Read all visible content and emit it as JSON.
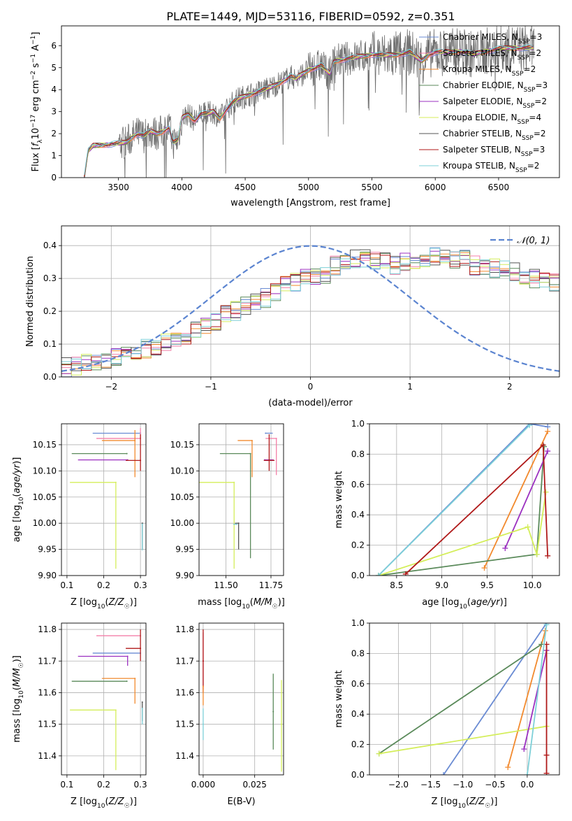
{
  "figure_title": "PLATE=1449, MJD=53116, FIBERID=0592, z=0.351",
  "colors": {
    "Chabrier MILES": "#6a8bd3",
    "Salpeter MILES": "#f47fa8",
    "Kroupa MILES": "#f28a2e",
    "Chabrier ELODIE": "#5a8a5a",
    "Salpeter ELODIE": "#9b30c0",
    "Kroupa ELODIE": "#d4ee5a",
    "Chabrier STELIB": "#555555",
    "Salpeter STELIB": "#b01a1a",
    "Kroupa STELIB": "#7ed0d8",
    "gauss": "#5b84d0",
    "data": "#6e6e6e"
  },
  "chart_data": [
    {
      "type": "line",
      "title": "PLATE=1449, MJD=53116, FIBERID=0592, z=0.351",
      "xlabel": "wavelength [Angstrom, rest frame]",
      "ylabel": "Flux [f_λ 10^-17 erg cm^-2 s^-1 A^-1]",
      "xlim": [
        3050,
        6980
      ],
      "ylim": [
        0,
        6.9
      ],
      "xticks": [
        3500,
        4000,
        4500,
        5000,
        5500,
        6000,
        6500
      ],
      "yticks": [
        0,
        1,
        2,
        3,
        4,
        5,
        6
      ],
      "legend_position": "top-right",
      "legend": [
        {
          "name": "Chabrier MILES",
          "n": "3"
        },
        {
          "name": "Salpeter MILES",
          "n": "2"
        },
        {
          "name": "Kroupa MILES",
          "n": "2"
        },
        {
          "name": "Chabrier ELODIE",
          "n": "3"
        },
        {
          "name": "Salpeter ELODIE",
          "n": "2"
        },
        {
          "name": "Kroupa ELODIE",
          "n": "4"
        },
        {
          "name": "Chabrier STELIB",
          "n": "2"
        },
        {
          "name": "Salpeter STELIB",
          "n": "3"
        },
        {
          "name": "Kroupa STELIB",
          "n": "2"
        }
      ],
      "model_continuum": {
        "x": [
          3230,
          3260,
          3300,
          3400,
          3500,
          3560,
          3600,
          3650,
          3700,
          3750,
          3800,
          3850,
          3900,
          3930,
          3970,
          4000,
          4050,
          4100,
          4150,
          4200,
          4250,
          4300,
          4350,
          4400,
          4450,
          4500,
          4550,
          4600,
          4700,
          4800,
          4860,
          4900,
          5000,
          5100,
          5170,
          5200,
          5300,
          5400,
          5500,
          5600,
          5700,
          5800,
          5890,
          5950,
          6000,
          6100,
          6200,
          6300,
          6400,
          6500,
          6600,
          6700,
          6780
        ],
        "y": [
          0.0,
          1.2,
          1.45,
          1.5,
          1.55,
          1.6,
          1.8,
          2.0,
          1.9,
          2.1,
          2.0,
          2.1,
          2.3,
          1.6,
          1.7,
          2.7,
          2.9,
          2.6,
          2.9,
          2.9,
          3.0,
          2.7,
          3.1,
          3.4,
          3.6,
          3.7,
          3.8,
          3.9,
          4.1,
          4.4,
          4.6,
          4.5,
          4.9,
          5.1,
          4.7,
          5.3,
          5.4,
          5.5,
          5.6,
          5.55,
          5.6,
          5.7,
          5.3,
          5.6,
          5.7,
          5.7,
          5.75,
          5.6,
          5.75,
          5.85,
          5.9,
          5.9,
          5.9
        ]
      }
    },
    {
      "type": "line",
      "xlabel": "(data-model)/error",
      "ylabel": "Normed distribution",
      "xlim": [
        -2.5,
        2.5
      ],
      "ylim": [
        0,
        0.46
      ],
      "xticks": [
        -2,
        -1,
        0,
        1,
        2
      ],
      "yticks": [
        0.0,
        0.1,
        0.2,
        0.3,
        0.4
      ],
      "gauss_label": "𝒩(0, 1)",
      "bin_edges_start": -2.5,
      "bin_width": 0.1,
      "histogram_base": [
        0.03,
        0.035,
        0.04,
        0.045,
        0.055,
        0.065,
        0.07,
        0.08,
        0.085,
        0.095,
        0.11,
        0.12,
        0.13,
        0.14,
        0.155,
        0.17,
        0.19,
        0.2,
        0.215,
        0.23,
        0.24,
        0.26,
        0.28,
        0.29,
        0.3,
        0.3,
        0.31,
        0.34,
        0.35,
        0.36,
        0.36,
        0.35,
        0.35,
        0.34,
        0.35,
        0.35,
        0.36,
        0.37,
        0.37,
        0.36,
        0.36,
        0.34,
        0.34,
        0.33,
        0.33,
        0.32,
        0.31,
        0.3,
        0.3,
        0.29,
        0.29,
        0.28,
        0.27,
        0.26,
        0.25,
        0.23,
        0.22,
        0.21,
        0.2,
        0.19,
        0.18,
        0.17,
        0.16,
        0.15,
        0.15,
        0.14,
        0.13,
        0.12,
        0.11,
        0.1,
        0.09,
        0.08,
        0.075,
        0.07,
        0.06,
        0.055,
        0.05,
        0.05,
        0.045,
        0.045
      ]
    },
    {
      "type": "scatter",
      "xlabel": "Z [log10(Z/Z☉)]",
      "ylabel": "age [log10(age/yr)]",
      "xlim": [
        0.085,
        0.315
      ],
      "ylim": [
        9.9,
        10.19
      ],
      "xticks": [
        0.1,
        0.2,
        0.3
      ],
      "yticks": [
        9.9,
        9.95,
        10.0,
        10.05,
        10.1,
        10.15
      ],
      "points": [
        {
          "name": "Chabrier MILES",
          "x": 0.3,
          "xerr": [
            0.13,
            0.0
          ],
          "y": 10.172,
          "yerr": [
            0.0,
            0.0
          ]
        },
        {
          "name": "Salpeter MILES",
          "x": 0.3,
          "xerr": [
            0.12,
            0.0
          ],
          "y": 10.162,
          "yerr": [
            0.0,
            0.02
          ]
        },
        {
          "name": "Kroupa MILES",
          "x": 0.285,
          "xerr": [
            0.09,
            0.0
          ],
          "y": 10.158,
          "yerr": [
            0.07,
            0.02
          ]
        },
        {
          "name": "Chabrier ELODIE",
          "x": 0.263,
          "xerr": [
            0.15,
            0.0
          ],
          "y": 10.133,
          "yerr": [
            0.0,
            0.0
          ]
        },
        {
          "name": "Salpeter ELODIE",
          "x": 0.265,
          "xerr": [
            0.135,
            0.0
          ],
          "y": 10.121,
          "yerr": [
            0.0,
            0.0
          ]
        },
        {
          "name": "Kroupa ELODIE",
          "x": 0.233,
          "xerr": [
            0.125,
            0.0
          ],
          "y": 10.078,
          "yerr": [
            0.165,
            0.0
          ]
        },
        {
          "name": "Chabrier STELIB",
          "x": 0.305,
          "xerr": [
            0.0,
            0.0
          ],
          "y": 10.0,
          "yerr": [
            0.05,
            0.0
          ]
        },
        {
          "name": "Salpeter STELIB",
          "x": 0.3,
          "xerr": [
            0.04,
            0.0
          ],
          "y": 10.12,
          "yerr": [
            0.02,
            0.05
          ]
        },
        {
          "name": "Kroupa STELIB",
          "x": 0.305,
          "xerr": [
            0.0,
            0.0
          ],
          "y": 9.998,
          "yerr": [
            0.05,
            0.0
          ]
        }
      ]
    },
    {
      "type": "scatter",
      "xlabel": "mass [log10(M/M☉)]",
      "ylabel": "",
      "xlim": [
        11.35,
        11.82
      ],
      "ylim": [
        9.9,
        10.19
      ],
      "xticks": [
        11.5,
        11.75
      ],
      "yticks": [
        9.9,
        9.95,
        10.0,
        10.05,
        10.1,
        10.15
      ],
      "points": [
        {
          "name": "Chabrier MILES",
          "x": 11.72,
          "xerr": [
            0.0,
            0.04
          ],
          "y": 10.172,
          "yerr": [
            0.0,
            0.0
          ]
        },
        {
          "name": "Salpeter MILES",
          "x": 11.78,
          "xerr": [
            0.06,
            0.0
          ],
          "y": 10.162,
          "yerr": [
            0.07,
            0.0
          ]
        },
        {
          "name": "Kroupa MILES",
          "x": 11.645,
          "xerr": [
            0.08,
            0.0
          ],
          "y": 10.158,
          "yerr": [
            0.07,
            0.0
          ]
        },
        {
          "name": "Chabrier ELODIE",
          "x": 11.636,
          "xerr": [
            0.17,
            0.0
          ],
          "y": 10.133,
          "yerr": [
            0.2,
            0.0
          ]
        },
        {
          "name": "Salpeter ELODIE",
          "x": 11.715,
          "xerr": [
            0.0,
            0.05
          ],
          "y": 10.121,
          "yerr": [
            0.0,
            0.0
          ]
        },
        {
          "name": "Kroupa ELODIE",
          "x": 11.545,
          "xerr": [
            0.21,
            0.0
          ],
          "y": 10.078,
          "yerr": [
            0.165,
            0.0
          ]
        },
        {
          "name": "Chabrier STELIB",
          "x": 11.57,
          "xerr": [
            0.02,
            0.0
          ],
          "y": 10.0,
          "yerr": [
            0.05,
            0.0
          ]
        },
        {
          "name": "Salpeter STELIB",
          "x": 11.74,
          "xerr": [
            0.03,
            0.03
          ],
          "y": 10.12,
          "yerr": [
            0.02,
            0.05
          ]
        },
        {
          "name": "Kroupa STELIB",
          "x": 11.56,
          "xerr": [
            0.02,
            0.0
          ],
          "y": 9.998,
          "yerr": [
            0.0,
            0.0
          ]
        }
      ]
    },
    {
      "type": "line",
      "xlabel": "age [log10(age/yr)]",
      "ylabel": "mass weight",
      "xlim": [
        8.2,
        10.3
      ],
      "ylim": [
        0,
        1.0
      ],
      "xticks": [
        8.5,
        9.0,
        9.5,
        10.0
      ],
      "yticks": [
        0.0,
        0.2,
        0.4,
        0.6,
        0.8,
        1.0
      ],
      "series": [
        {
          "name": "Chabrier MILES",
          "x": [
            8.3,
            9.97,
            10.17
          ],
          "y": [
            0.0,
            1.0,
            0.98
          ]
        },
        {
          "name": "Kroupa MILES",
          "x": [
            9.47,
            10.17
          ],
          "y": [
            0.05,
            0.95
          ]
        },
        {
          "name": "Chabrier ELODIE",
          "x": [
            8.3,
            10.05,
            10.13
          ],
          "y": [
            0.0,
            0.14,
            0.85
          ]
        },
        {
          "name": "Salpeter ELODIE",
          "x": [
            9.7,
            10.17
          ],
          "y": [
            0.18,
            0.82
          ]
        },
        {
          "name": "Kroupa ELODIE",
          "x": [
            8.3,
            9.95,
            10.05,
            10.15
          ],
          "y": [
            0.0,
            0.32,
            0.14,
            0.55
          ]
        },
        {
          "name": "Salpeter STELIB",
          "x": [
            8.6,
            10.12,
            10.17
          ],
          "y": [
            0.01,
            0.86,
            0.13
          ]
        },
        {
          "name": "Kroupa STELIB",
          "x": [
            8.3,
            9.97
          ],
          "y": [
            0.0,
            0.99
          ]
        }
      ]
    },
    {
      "type": "scatter",
      "xlabel": "Z [log10(Z/Z☉)]",
      "ylabel": "mass [log10(M/M☉)]",
      "xlim": [
        0.085,
        0.315
      ],
      "ylim": [
        11.34,
        11.82
      ],
      "xticks": [
        0.1,
        0.2,
        0.3
      ],
      "yticks": [
        11.4,
        11.5,
        11.6,
        11.7,
        11.8
      ],
      "points": [
        {
          "name": "Chabrier MILES",
          "x": 0.3,
          "xerr": [
            0.13,
            0.0
          ],
          "y": 11.725,
          "yerr": [
            0.0,
            0.0
          ]
        },
        {
          "name": "Salpeter MILES",
          "x": 0.3,
          "xerr": [
            0.12,
            0.0
          ],
          "y": 11.78,
          "yerr": [
            0.0,
            0.0
          ]
        },
        {
          "name": "Kroupa MILES",
          "x": 0.285,
          "xerr": [
            0.09,
            0.0
          ],
          "y": 11.645,
          "yerr": [
            0.08,
            0.0
          ]
        },
        {
          "name": "Chabrier ELODIE",
          "x": 0.263,
          "xerr": [
            0.15,
            0.0
          ],
          "y": 11.636,
          "yerr": [
            0.0,
            0.0
          ]
        },
        {
          "name": "Salpeter ELODIE",
          "x": 0.265,
          "xerr": [
            0.135,
            0.0
          ],
          "y": 11.715,
          "yerr": [
            0.03,
            0.0
          ]
        },
        {
          "name": "Kroupa ELODIE",
          "x": 0.233,
          "xerr": [
            0.125,
            0.0
          ],
          "y": 11.545,
          "yerr": [
            0.19,
            0.0
          ]
        },
        {
          "name": "Chabrier STELIB",
          "x": 0.305,
          "xerr": [
            0.0,
            0.0
          ],
          "y": 11.57,
          "yerr": [
            0.06,
            0.0
          ]
        },
        {
          "name": "Salpeter STELIB",
          "x": 0.3,
          "xerr": [
            0.04,
            0.0
          ],
          "y": 11.74,
          "yerr": [
            0.04,
            0.06
          ]
        },
        {
          "name": "Kroupa STELIB",
          "x": 0.305,
          "xerr": [
            0.0,
            0.0
          ],
          "y": 11.55,
          "yerr": [
            0.05,
            0.0
          ]
        }
      ]
    },
    {
      "type": "scatter",
      "xlabel": "E(B-V)",
      "ylabel": "",
      "xlim": [
        -0.002,
        0.039
      ],
      "ylim": [
        11.34,
        11.82
      ],
      "xticks": [
        0.0,
        0.025
      ],
      "xticklabels": [
        "0.000",
        "0.025"
      ],
      "yticks": [
        11.4,
        11.5,
        11.6,
        11.7,
        11.8
      ],
      "points": [
        {
          "name": "Salpeter MILES",
          "x": 0.0,
          "y": 11.7,
          "yerr": [
            0.09,
            0.09
          ]
        },
        {
          "name": "Salpeter STELIB",
          "x": 0.0,
          "y": 11.7,
          "yerr": [
            0.1,
            0.1
          ]
        },
        {
          "name": "Kroupa MILES",
          "x": 0.0,
          "y": 11.62,
          "yerr": [
            0.06,
            0.0
          ]
        },
        {
          "name": "Kroupa STELIB",
          "x": 0.0,
          "y": 11.5,
          "yerr": [
            0.05,
            0.05
          ]
        },
        {
          "name": "Chabrier ELODIE",
          "x": 0.034,
          "y": 11.54,
          "yerr": [
            0.12,
            0.12
          ]
        },
        {
          "name": "Kroupa ELODIE",
          "x": 0.038,
          "y": 11.5,
          "yerr": [
            0.15,
            0.14
          ]
        }
      ]
    },
    {
      "type": "line",
      "xlabel": "Z [log10(Z/Z☉)]",
      "ylabel": "mass weight",
      "xlim": [
        -2.45,
        0.5
      ],
      "ylim": [
        0,
        1.0
      ],
      "xticks": [
        -2.0,
        -1.5,
        -1.0,
        -0.5,
        0.0
      ],
      "yticks": [
        0.0,
        0.2,
        0.4,
        0.6,
        0.8,
        1.0
      ],
      "series": [
        {
          "name": "Chabrier MILES",
          "x": [
            -1.3,
            0.3
          ],
          "y": [
            0.0,
            1.0
          ]
        },
        {
          "name": "Kroupa MILES",
          "x": [
            -0.3,
            0.28
          ],
          "y": [
            0.05,
            0.95
          ]
        },
        {
          "name": "Chabrier ELODIE",
          "x": [
            -2.3,
            0.22
          ],
          "y": [
            0.14,
            0.86
          ]
        },
        {
          "name": "Kroupa ELODIE",
          "x": [
            -2.3,
            0.3
          ],
          "y": [
            0.14,
            0.32
          ]
        },
        {
          "name": "Salpeter ELODIE",
          "x": [
            -0.05,
            0.3
          ],
          "y": [
            0.17,
            0.82
          ]
        },
        {
          "name": "Salpeter STELIB",
          "x": [
            0.3,
            0.3,
            0.3
          ],
          "y": [
            0.01,
            0.86,
            0.13
          ]
        },
        {
          "name": "Kroupa STELIB",
          "x": [
            0.0,
            0.3
          ],
          "y": [
            0.0,
            0.99
          ]
        }
      ]
    }
  ]
}
